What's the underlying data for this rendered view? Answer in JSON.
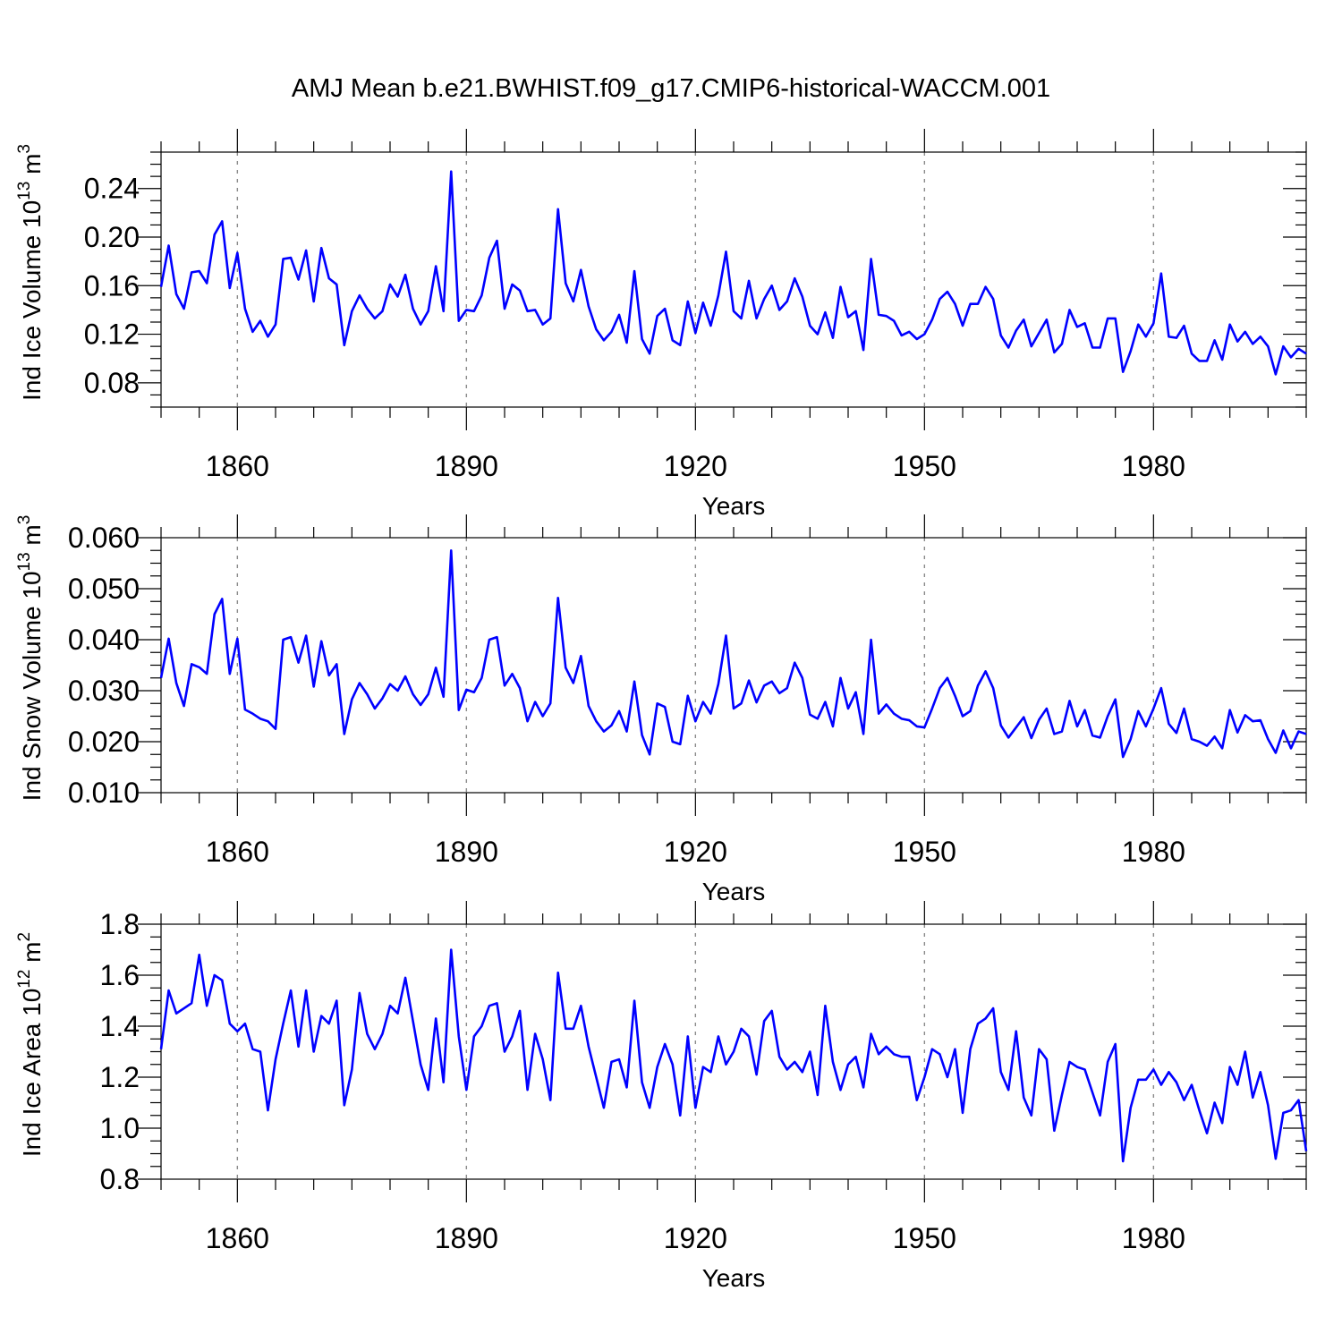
{
  "title": "AMJ Mean b.e21.BWHIST.f09_g17.CMIP6-historical-WACCM.001",
  "line_color": "#0000ff",
  "grid_color": "#8a8a8a",
  "chart_data": [
    {
      "type": "line",
      "name": "ind-ice-volume",
      "ylabel_main": "Ind Ice Volume 10",
      "ylabel_exp": "13",
      "ylabel_unit": " m",
      "ylabel_unit_exp": "3",
      "xlabel": "Years",
      "xlim": [
        1850,
        2000
      ],
      "ylim": [
        0.06,
        0.27
      ],
      "yticks": [
        0.08,
        0.12,
        0.16,
        0.2,
        0.24
      ],
      "ytick_labels": [
        "0.08",
        "0.12",
        "0.16",
        "0.20",
        "0.24"
      ],
      "yminor": 0.01,
      "xticks": [
        1860,
        1890,
        1920,
        1950,
        1980
      ],
      "xtick_labels": [
        "1860",
        "1890",
        "1920",
        "1950",
        "1980"
      ],
      "xminor": 5,
      "grid_x": [
        1860,
        1890,
        1920,
        1950,
        1980
      ],
      "x_start": 1850,
      "values": [
        0.159,
        0.193,
        0.153,
        0.141,
        0.171,
        0.172,
        0.162,
        0.202,
        0.213,
        0.158,
        0.187,
        0.141,
        0.122,
        0.131,
        0.118,
        0.128,
        0.182,
        0.183,
        0.165,
        0.189,
        0.147,
        0.191,
        0.166,
        0.161,
        0.111,
        0.139,
        0.152,
        0.141,
        0.133,
        0.139,
        0.161,
        0.151,
        0.169,
        0.141,
        0.128,
        0.139,
        0.176,
        0.139,
        0.254,
        0.131,
        0.14,
        0.139,
        0.152,
        0.183,
        0.197,
        0.141,
        0.161,
        0.156,
        0.139,
        0.14,
        0.128,
        0.133,
        0.223,
        0.162,
        0.147,
        0.173,
        0.143,
        0.124,
        0.115,
        0.122,
        0.136,
        0.113,
        0.172,
        0.116,
        0.104,
        0.135,
        0.141,
        0.115,
        0.111,
        0.147,
        0.121,
        0.146,
        0.127,
        0.152,
        0.188,
        0.139,
        0.133,
        0.164,
        0.133,
        0.149,
        0.16,
        0.14,
        0.147,
        0.166,
        0.151,
        0.127,
        0.12,
        0.138,
        0.117,
        0.159,
        0.134,
        0.139,
        0.107,
        0.182,
        0.136,
        0.135,
        0.131,
        0.119,
        0.122,
        0.116,
        0.12,
        0.132,
        0.149,
        0.155,
        0.145,
        0.127,
        0.145,
        0.145,
        0.159,
        0.149,
        0.119,
        0.109,
        0.123,
        0.132,
        0.11,
        0.121,
        0.132,
        0.105,
        0.112,
        0.14,
        0.126,
        0.129,
        0.109,
        0.109,
        0.133,
        0.133,
        0.089,
        0.106,
        0.128,
        0.118,
        0.129,
        0.17,
        0.118,
        0.117,
        0.127,
        0.104,
        0.098,
        0.098,
        0.115,
        0.099,
        0.128,
        0.114,
        0.122,
        0.112,
        0.118,
        0.11,
        0.087,
        0.11,
        0.101,
        0.108,
        0.104
      ]
    },
    {
      "type": "line",
      "name": "ind-snow-volume",
      "ylabel_main": "Ind Snow Volume 10",
      "ylabel_exp": "13",
      "ylabel_unit": " m",
      "ylabel_unit_exp": "3",
      "xlabel": "Years",
      "xlim": [
        1850,
        2000
      ],
      "ylim": [
        0.01,
        0.06
      ],
      "yticks": [
        0.01,
        0.02,
        0.03,
        0.04,
        0.05,
        0.06
      ],
      "ytick_labels": [
        "0.010",
        "0.020",
        "0.030",
        "0.040",
        "0.050",
        "0.060"
      ],
      "yminor": 0.0025,
      "xticks": [
        1860,
        1890,
        1920,
        1950,
        1980
      ],
      "xtick_labels": [
        "1860",
        "1890",
        "1920",
        "1950",
        "1980"
      ],
      "xminor": 5,
      "grid_x": [
        1860,
        1890,
        1920,
        1950,
        1980
      ],
      "x_start": 1850,
      "values": [
        0.0325,
        0.0402,
        0.0315,
        0.027,
        0.0352,
        0.0346,
        0.0333,
        0.045,
        0.048,
        0.0333,
        0.0402,
        0.0263,
        0.0255,
        0.0245,
        0.024,
        0.0225,
        0.04,
        0.0405,
        0.0355,
        0.0408,
        0.0308,
        0.0397,
        0.033,
        0.0352,
        0.0215,
        0.0283,
        0.0315,
        0.0293,
        0.0265,
        0.0285,
        0.0313,
        0.03,
        0.0328,
        0.0293,
        0.0272,
        0.0293,
        0.0345,
        0.0288,
        0.0575,
        0.0262,
        0.0302,
        0.0297,
        0.0325,
        0.04,
        0.0405,
        0.031,
        0.0333,
        0.0305,
        0.024,
        0.0278,
        0.025,
        0.0275,
        0.0482,
        0.0345,
        0.0315,
        0.0368,
        0.027,
        0.024,
        0.022,
        0.0232,
        0.026,
        0.022,
        0.0318,
        0.0213,
        0.0175,
        0.0275,
        0.0268,
        0.02,
        0.0195,
        0.029,
        0.024,
        0.0278,
        0.0255,
        0.0313,
        0.0408,
        0.0265,
        0.0275,
        0.032,
        0.0277,
        0.031,
        0.0318,
        0.0295,
        0.0305,
        0.0355,
        0.0325,
        0.0253,
        0.0245,
        0.0278,
        0.023,
        0.0325,
        0.0265,
        0.0297,
        0.0215,
        0.04,
        0.0255,
        0.0273,
        0.0255,
        0.0245,
        0.0242,
        0.023,
        0.0228,
        0.0265,
        0.0305,
        0.0325,
        0.029,
        0.025,
        0.026,
        0.031,
        0.0338,
        0.0305,
        0.0232,
        0.0208,
        0.0228,
        0.0248,
        0.0207,
        0.0243,
        0.0265,
        0.0215,
        0.022,
        0.028,
        0.023,
        0.0262,
        0.0212,
        0.0208,
        0.025,
        0.0283,
        0.017,
        0.0205,
        0.026,
        0.023,
        0.0265,
        0.0305,
        0.0235,
        0.0217,
        0.0265,
        0.0205,
        0.02,
        0.0192,
        0.021,
        0.0187,
        0.0262,
        0.0218,
        0.0252,
        0.024,
        0.0242,
        0.0205,
        0.0178,
        0.0222,
        0.0187,
        0.022,
        0.0215
      ]
    },
    {
      "type": "line",
      "name": "ind-ice-area",
      "ylabel_main": "Ind Ice Area 10",
      "ylabel_exp": "12",
      "ylabel_unit": " m",
      "ylabel_unit_exp": "2",
      "xlabel": "Years",
      "xlim": [
        1850,
        2000
      ],
      "ylim": [
        0.8,
        1.8
      ],
      "yticks": [
        0.8,
        1.0,
        1.2,
        1.4,
        1.6,
        1.8
      ],
      "ytick_labels": [
        "0.8",
        "1.0",
        "1.2",
        "1.4",
        "1.6",
        "1.8"
      ],
      "yminor": 0.05,
      "xticks": [
        1860,
        1890,
        1920,
        1950,
        1980
      ],
      "xtick_labels": [
        "1860",
        "1890",
        "1920",
        "1950",
        "1980"
      ],
      "xminor": 5,
      "grid_x": [
        1860,
        1890,
        1920,
        1950,
        1980
      ],
      "x_start": 1850,
      "values": [
        1.31,
        1.54,
        1.45,
        1.47,
        1.49,
        1.68,
        1.48,
        1.6,
        1.58,
        1.41,
        1.38,
        1.41,
        1.31,
        1.3,
        1.07,
        1.27,
        1.41,
        1.54,
        1.32,
        1.54,
        1.3,
        1.44,
        1.41,
        1.5,
        1.09,
        1.23,
        1.53,
        1.37,
        1.31,
        1.37,
        1.48,
        1.45,
        1.59,
        1.42,
        1.25,
        1.15,
        1.43,
        1.18,
        1.7,
        1.36,
        1.15,
        1.36,
        1.4,
        1.48,
        1.49,
        1.3,
        1.36,
        1.46,
        1.15,
        1.37,
        1.27,
        1.11,
        1.61,
        1.39,
        1.39,
        1.48,
        1.32,
        1.2,
        1.08,
        1.26,
        1.27,
        1.16,
        1.5,
        1.18,
        1.08,
        1.24,
        1.33,
        1.25,
        1.05,
        1.36,
        1.08,
        1.24,
        1.22,
        1.36,
        1.25,
        1.3,
        1.39,
        1.36,
        1.21,
        1.42,
        1.46,
        1.28,
        1.23,
        1.26,
        1.22,
        1.3,
        1.13,
        1.48,
        1.26,
        1.15,
        1.25,
        1.28,
        1.16,
        1.37,
        1.29,
        1.32,
        1.29,
        1.28,
        1.28,
        1.11,
        1.2,
        1.31,
        1.29,
        1.2,
        1.31,
        1.06,
        1.31,
        1.41,
        1.43,
        1.47,
        1.22,
        1.15,
        1.38,
        1.12,
        1.05,
        1.31,
        1.27,
        0.99,
        1.13,
        1.26,
        1.24,
        1.23,
        1.14,
        1.05,
        1.26,
        1.33,
        0.87,
        1.08,
        1.19,
        1.19,
        1.23,
        1.17,
        1.22,
        1.18,
        1.11,
        1.17,
        1.07,
        0.98,
        1.1,
        1.02,
        1.24,
        1.17,
        1.3,
        1.12,
        1.22,
        1.09,
        0.88,
        1.06,
        1.07,
        1.11,
        0.91
      ]
    }
  ]
}
